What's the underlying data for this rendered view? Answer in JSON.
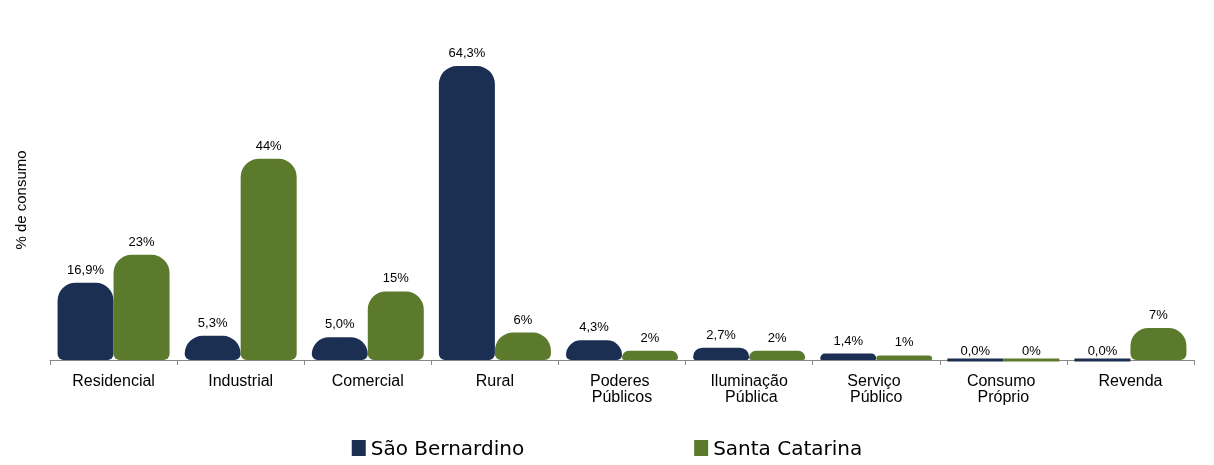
{
  "chart_data": {
    "type": "bar",
    "ylabel": "% de consumo",
    "categories": [
      "Residencial",
      "Industrial",
      "Comercial",
      "Rural",
      "Poderes Públicos",
      "Iluminação Pública",
      "Serviço Público",
      "Consumo Próprio",
      "Revenda"
    ],
    "series": [
      {
        "name": "São Bernardino",
        "color": "#1b2f52",
        "values": [
          16.9,
          5.3,
          5.0,
          64.3,
          4.3,
          2.7,
          1.4,
          0.0,
          0.0
        ],
        "value_labels": [
          "16,9%",
          "5,3%",
          "5,0%",
          "64,3%",
          "4,3%",
          "2,7%",
          "1,4%",
          "0,0%",
          "0,0%"
        ]
      },
      {
        "name": "Santa Catarina",
        "color": "#5b7a2b",
        "values": [
          23,
          44,
          15,
          6,
          2,
          2,
          1,
          0,
          7
        ],
        "value_labels": [
          "23%",
          "44%",
          "15%",
          "6%",
          "2%",
          "2%",
          "1%",
          "0%",
          "7%"
        ]
      }
    ],
    "grid": false,
    "legend": "bottom"
  }
}
